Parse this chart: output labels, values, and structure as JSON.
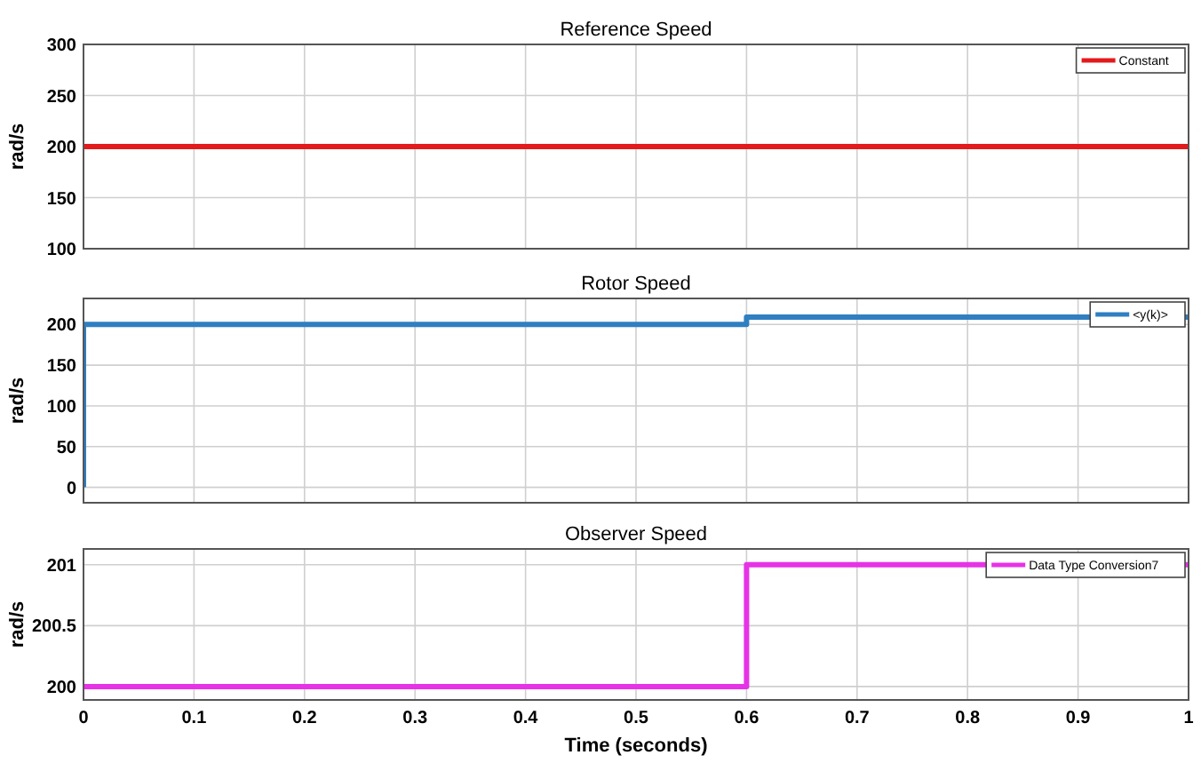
{
  "chart_data": [
    {
      "type": "line",
      "title": "Reference Speed",
      "ylabel": "rad/s",
      "xlim": [
        0,
        1
      ],
      "xticks": [
        0,
        0.1,
        0.2,
        0.3,
        0.4,
        0.5,
        0.6,
        0.7,
        0.8,
        0.9,
        1
      ],
      "ylim": [
        100,
        300
      ],
      "yticks": [
        100,
        150,
        200,
        250,
        300
      ],
      "grid": true,
      "legend": "top right",
      "tick_labels": "y",
      "series": [
        {
          "name": "Constant",
          "color": "#e31a1c",
          "x": [
            0,
            1
          ],
          "values": [
            200,
            200
          ]
        }
      ]
    },
    {
      "type": "line",
      "title": "Rotor Speed",
      "ylabel": "rad/s",
      "xlim": [
        0,
        1
      ],
      "xticks": [
        0,
        0.1,
        0.2,
        0.3,
        0.4,
        0.5,
        0.6,
        0.7,
        0.8,
        0.9,
        1
      ],
      "ylim": [
        -19,
        232
      ],
      "yticks": [
        0,
        50,
        100,
        150,
        200
      ],
      "grid": true,
      "legend": "top right",
      "tick_labels": "y",
      "series": [
        {
          "name": "<y(k)>",
          "color": "#2f7fc1",
          "x": [
            0,
            0,
            0.6,
            0.6,
            1
          ],
          "values": [
            0,
            200,
            200,
            209,
            209
          ]
        }
      ]
    },
    {
      "type": "line",
      "title": "Observer Speed",
      "xlabel": "Time (seconds)",
      "ylabel": "rad/s",
      "xlim": [
        0,
        1
      ],
      "xticks": [
        0,
        0.1,
        0.2,
        0.3,
        0.4,
        0.5,
        0.6,
        0.7,
        0.8,
        0.9,
        1
      ],
      "ylim": [
        199.89,
        201.13
      ],
      "yticks": [
        200,
        200.5,
        201
      ],
      "grid": true,
      "legend": "top right",
      "series": [
        {
          "name": "Data Type Conversion7",
          "color": "#e633e6",
          "x": [
            0,
            0.6,
            0.6,
            1
          ],
          "values": [
            200,
            200,
            201,
            201
          ]
        }
      ]
    }
  ]
}
